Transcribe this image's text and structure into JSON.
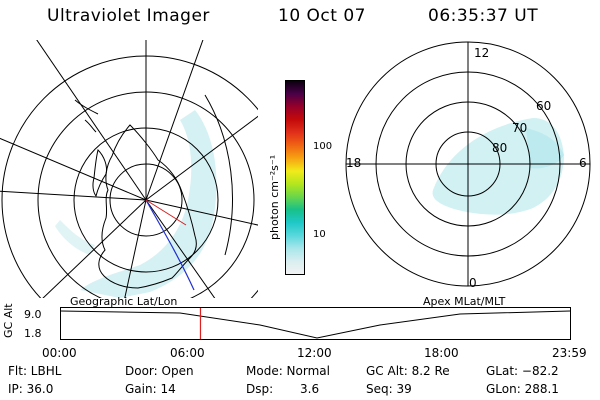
{
  "header": {
    "instrument": "Ultraviolet Imager",
    "date": "10 Oct 07",
    "time": "06:35:37 UT"
  },
  "left_panel": {
    "label": "Geographic Lat/Lon"
  },
  "right_panel": {
    "label": "Apex MLat/MLT",
    "mlt_labels": {
      "top": "12",
      "left": "18",
      "right": "6",
      "bottom": "0"
    },
    "lat_labels": [
      "60",
      "70",
      "80"
    ]
  },
  "colorbar": {
    "title": "photon cm⁻²s⁻¹",
    "ticks": [
      "100",
      "10"
    ],
    "colors": [
      "#f2f2f2",
      "#d8eef0",
      "#a8e6ea",
      "#58d8dc",
      "#1fc8c8",
      "#18c08a",
      "#6ad64a",
      "#b4e61e",
      "#f2ea1a",
      "#f7a212",
      "#f06414",
      "#e0301a",
      "#c40a0a",
      "#96002a",
      "#4a0048",
      "#0c0010"
    ]
  },
  "timeline": {
    "axis_label": "GC Alt",
    "y_labels": [
      "9.0",
      "1.8"
    ],
    "x_labels": [
      "00:00",
      "06:00",
      "12:00",
      "18:00",
      "23:59"
    ],
    "current_time_fraction": 0.274
  },
  "status": {
    "flt": "Flt: LBHL",
    "ip": "IP: 36.0",
    "door": "Door: Open",
    "gain": "Gain: 14",
    "mode": "Mode: Normal",
    "dsp_label": "Dsp:",
    "dsp_value": "3.6",
    "gc_alt": "GC Alt: 8.2 Re",
    "seq": "Seq: 39",
    "glat": "GLat: −82.2",
    "glon": "GLon: 288.1"
  }
}
